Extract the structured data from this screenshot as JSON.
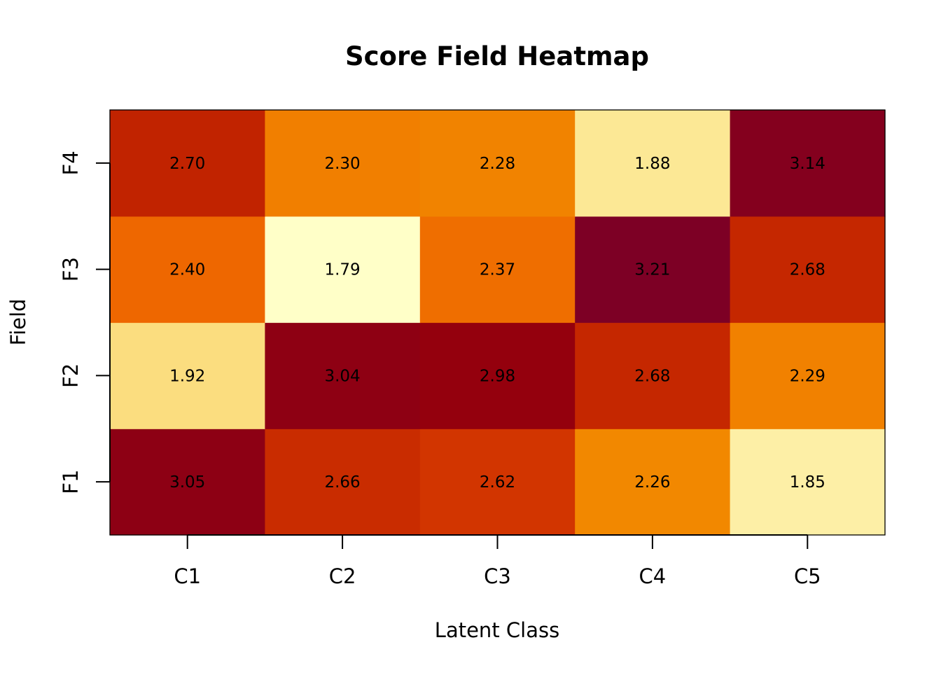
{
  "chart_data": {
    "type": "heatmap",
    "title": "Score Field Heatmap",
    "xlabel": "Latent Class",
    "ylabel": "Field",
    "x_categories": [
      "C1",
      "C2",
      "C3",
      "C4",
      "C5"
    ],
    "y_categories": [
      "F1",
      "F2",
      "F3",
      "F4"
    ],
    "values": [
      [
        3.05,
        2.66,
        2.62,
        2.26,
        1.85
      ],
      [
        1.92,
        3.04,
        2.98,
        2.68,
        2.29
      ],
      [
        2.4,
        1.79,
        2.37,
        3.21,
        2.68
      ],
      [
        2.7,
        2.3,
        2.28,
        1.88,
        3.14
      ]
    ],
    "value_format_decimals": 2,
    "color_scale": {
      "name": "heat (reversed)",
      "stops": [
        "#FFFFC8",
        "#F5A300",
        "#EB5000",
        "#A00000",
        "#7D0025"
      ],
      "low_color": "#FFFFC8",
      "high_color": "#7D0025"
    },
    "grid": false,
    "legend": "none"
  }
}
